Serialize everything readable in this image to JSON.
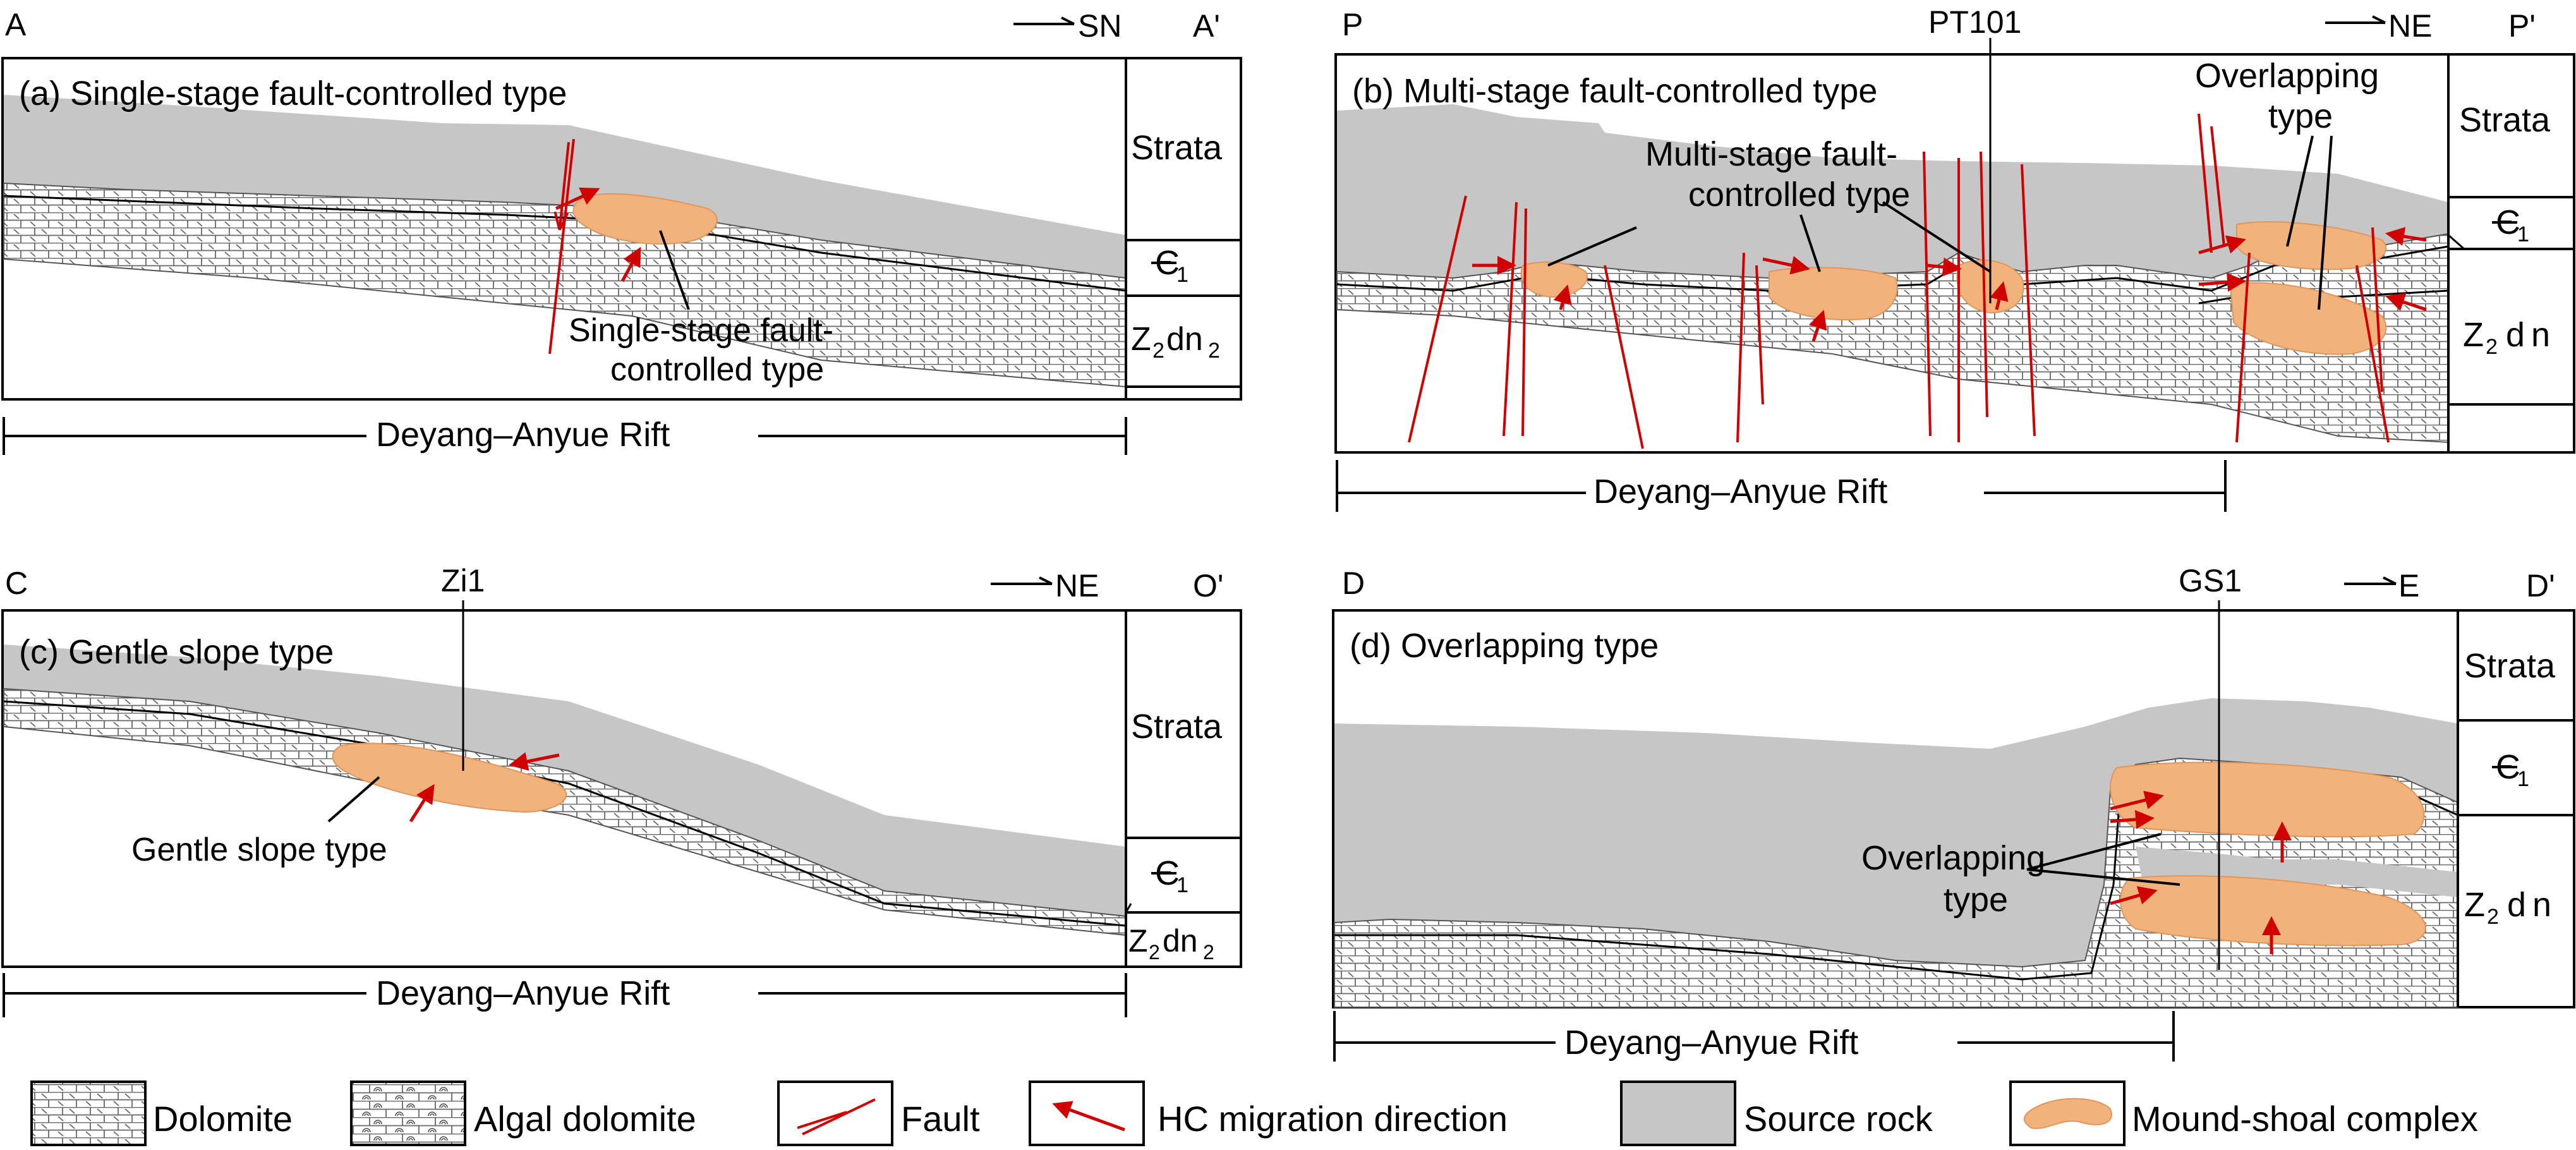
{
  "panels": {
    "a": {
      "corner_left": "A",
      "corner_right": "A'",
      "direction": "SN",
      "title": "(a) Single-stage fault-controlled type",
      "annotation": [
        "Single-stage fault-",
        "controlled type"
      ],
      "strata": {
        "header": "Strata",
        "cambrian": "Є",
        "cambrian_sub": "1",
        "z_prefix": "Z",
        "z_sub1": "2",
        "z_mid": "dn",
        "z_sub2": "2"
      },
      "rift": "Deyang–Anyue Rift"
    },
    "b": {
      "corner_left": "P",
      "corner_right": "P'",
      "direction": "NE",
      "well": "PT101",
      "title": "(b) Multi-stage fault-controlled type",
      "annotation_multi": [
        "Multi-stage fault-",
        "controlled type"
      ],
      "annotation_overlap": [
        "Overlapping",
        "type"
      ],
      "strata": {
        "header": "Strata",
        "cambrian": "Є",
        "cambrian_sub": "1",
        "z_prefix": "Z",
        "z_sub1": "2",
        "z_mid": "dn"
      },
      "rift": "Deyang–Anyue Rift"
    },
    "c": {
      "corner_left": "C",
      "corner_right": "O'",
      "direction": "NE",
      "well": "Zi1",
      "title": "(c) Gentle slope type",
      "annotation": "Gentle slope type",
      "strata": {
        "header": "Strata",
        "cambrian": "Є",
        "cambrian_sub": "1",
        "z_prefix": "Z",
        "z_sub1": "2",
        "z_mid": "dn",
        "z_sub2": "2"
      },
      "rift": "Deyang–Anyue Rift"
    },
    "d": {
      "corner_left": "D",
      "corner_right": "D'",
      "direction": "E",
      "well": "GS1",
      "title": "(d) Overlapping type",
      "annotation": [
        "Overlapping",
        "type"
      ],
      "strata": {
        "header": "Strata",
        "cambrian": "Є",
        "cambrian_sub": "1",
        "z_prefix": "Z",
        "z_sub1": "2",
        "z_mid": "dn"
      },
      "rift": "Deyang–Anyue Rift"
    }
  },
  "legend": {
    "dolomite": "Dolomite",
    "algal": "Algal dolomite",
    "fault": "Fault",
    "migration": "HC migration direction",
    "source": "Source rock",
    "mound": "Mound-shoal complex"
  },
  "colors": {
    "source_rock": "#c6c6c6",
    "mound_shoal": "#f2b27c",
    "fault": "#d00000"
  }
}
